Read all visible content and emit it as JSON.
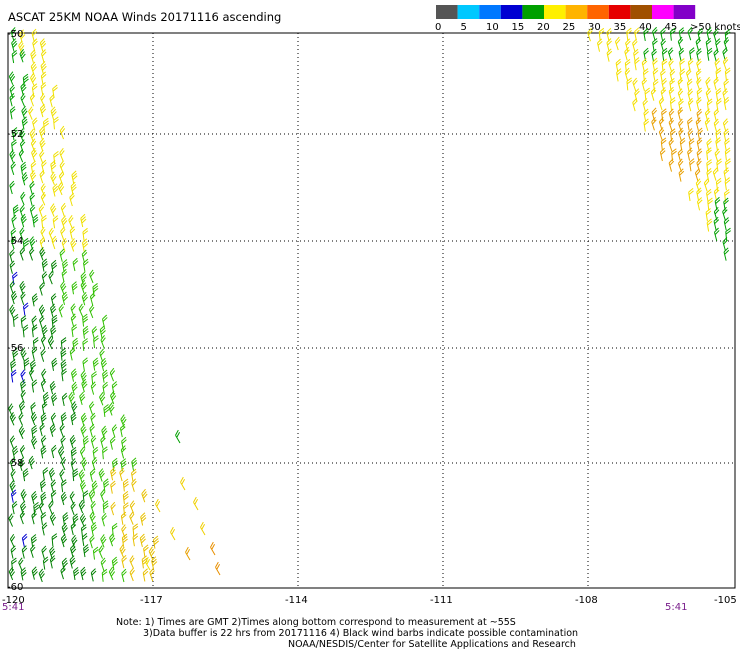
{
  "title": "ASCAT 25KM NOAA Winds 20171116 ascending",
  "legend": {
    "labels": [
      "0",
      "5",
      "10",
      "15",
      "20",
      "25",
      "30",
      "35",
      "40",
      "45",
      ">50 knots"
    ],
    "colors": [
      "#555555",
      "#00c8ff",
      "#0078ff",
      "#0000d2",
      "#00a000",
      "#fff000",
      "#ffb400",
      "#ff6400",
      "#e60000",
      "#a05000",
      "#ff00ff",
      "#8200c8"
    ]
  },
  "axes": {
    "lat_labels": [
      "-50",
      "-52",
      "-54",
      "-56",
      "-58",
      "-60"
    ],
    "lon_labels": [
      "-120",
      "-117",
      "-114",
      "-111",
      "-108",
      "-105"
    ],
    "lat_range": [
      -60,
      -50
    ],
    "lon_range": [
      -120,
      -105
    ]
  },
  "times": {
    "left": "5:41",
    "right": "5:41"
  },
  "notes": {
    "line1": "Note: 1) Times are GMT 2)Times along bottom correspond to measurement at ~55S",
    "line2": "3)Data buffer is 22 hrs from 20171116 4) Black wind barbs indicate possible contamination",
    "line3": "NOAA/NESDIS/Center for Satellite Applications and Research"
  }
}
